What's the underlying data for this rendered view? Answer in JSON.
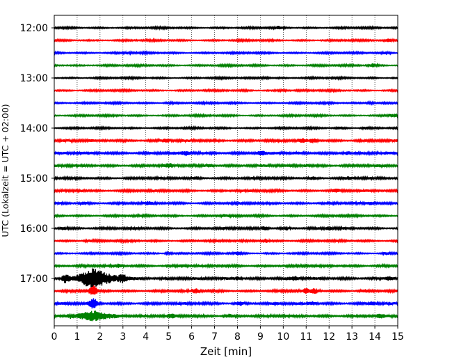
{
  "chart_data": {
    "type": "line",
    "title": "",
    "xlabel": "Zeit  [min]",
    "ylabel": "UTC (Lokalzeit = UTC + 02:00)",
    "xlim": [
      0,
      15
    ],
    "x_ticks": [
      "0",
      "1",
      "2",
      "3",
      "4",
      "5",
      "6",
      "7",
      "8",
      "9",
      "10",
      "11",
      "12",
      "13",
      "14",
      "15"
    ],
    "y_ticks": [
      {
        "label": "12:00",
        "trace": 0
      },
      {
        "label": "13:00",
        "trace": 4
      },
      {
        "label": "14:00",
        "trace": 8
      },
      {
        "label": "15:00",
        "trace": 12
      },
      {
        "label": "16:00",
        "trace": 16
      },
      {
        "label": "17:00",
        "trace": 20
      }
    ],
    "grid": "vertical-dotted",
    "trace_interval_minutes": 15,
    "trace_color_cycle": [
      "#000000",
      "#ff0000",
      "#0000ff",
      "#008000"
    ],
    "traces": [
      {
        "start": "12:00",
        "color": "#000000",
        "amplitude": 0.35,
        "events": [
          {
            "x": 9.8,
            "amp": 0.5
          }
        ]
      },
      {
        "start": "12:15",
        "color": "#ff0000",
        "amplitude": 0.35,
        "events": [
          {
            "x": 14.6,
            "amp": 0.5
          }
        ]
      },
      {
        "start": "12:30",
        "color": "#0000ff",
        "amplitude": 0.35,
        "events": [
          {
            "x": 3.2,
            "amp": 0.4
          },
          {
            "x": 14.5,
            "amp": 0.5
          }
        ]
      },
      {
        "start": "12:45",
        "color": "#008000",
        "amplitude": 0.35,
        "events": [
          {
            "x": 13.9,
            "amp": 0.6
          }
        ]
      },
      {
        "start": "13:00",
        "color": "#000000",
        "amplitude": 0.35,
        "events": [
          {
            "x": 9.2,
            "amp": 0.5
          }
        ]
      },
      {
        "start": "13:15",
        "color": "#ff0000",
        "amplitude": 0.35,
        "events": [
          {
            "x": 10.0,
            "amp": 0.4
          }
        ]
      },
      {
        "start": "13:30",
        "color": "#0000ff",
        "amplitude": 0.35,
        "events": [
          {
            "x": 5.0,
            "amp": 0.4
          },
          {
            "x": 13.8,
            "amp": 0.4
          }
        ]
      },
      {
        "start": "13:45",
        "color": "#008000",
        "amplitude": 0.35,
        "events": [
          {
            "x": 14.8,
            "amp": 0.6
          }
        ]
      },
      {
        "start": "14:00",
        "color": "#000000",
        "amplitude": 0.35,
        "events": [
          {
            "x": 12.5,
            "amp": 0.5
          },
          {
            "x": 13.6,
            "amp": 0.5
          }
        ]
      },
      {
        "start": "14:15",
        "color": "#ff0000",
        "amplitude": 0.5,
        "events": [
          {
            "x": 4.9,
            "amp": 0.8
          },
          {
            "x": 11.3,
            "amp": 0.8
          },
          {
            "x": 10.8,
            "amp": 0.6
          }
        ]
      },
      {
        "start": "14:30",
        "color": "#0000ff",
        "amplitude": 0.55,
        "events": [
          {
            "x": 5.8,
            "amp": 0.7
          },
          {
            "x": 9.0,
            "amp": 0.7
          },
          {
            "x": 12.8,
            "amp": 0.6
          }
        ]
      },
      {
        "start": "14:45",
        "color": "#008000",
        "amplitude": 0.5,
        "events": [
          {
            "x": 5.0,
            "amp": 0.6
          },
          {
            "x": 6.8,
            "amp": 0.6
          },
          {
            "x": 11.0,
            "amp": 0.5
          }
        ]
      },
      {
        "start": "15:00",
        "color": "#000000",
        "amplitude": 0.45,
        "events": [
          {
            "x": 6.2,
            "amp": 0.6
          },
          {
            "x": 11.3,
            "amp": 0.5
          },
          {
            "x": 12.9,
            "amp": 0.5
          }
        ]
      },
      {
        "start": "15:15",
        "color": "#ff0000",
        "amplitude": 0.45,
        "events": [
          {
            "x": 12.3,
            "amp": 0.6
          },
          {
            "x": 1.2,
            "amp": 0.4
          }
        ]
      },
      {
        "start": "15:30",
        "color": "#0000ff",
        "amplitude": 0.45,
        "events": [
          {
            "x": 1.3,
            "amp": 0.5
          },
          {
            "x": 4.1,
            "amp": 0.5
          },
          {
            "x": 13.8,
            "amp": 0.5
          }
        ]
      },
      {
        "start": "15:45",
        "color": "#008000",
        "amplitude": 0.4,
        "events": [
          {
            "x": 7.4,
            "amp": 0.4
          }
        ]
      },
      {
        "start": "16:00",
        "color": "#000000",
        "amplitude": 0.45,
        "events": [
          {
            "x": 0.4,
            "amp": 0.6
          },
          {
            "x": 9.2,
            "amp": 0.7
          },
          {
            "x": 10.1,
            "amp": 0.6
          },
          {
            "x": 12.0,
            "amp": 0.5
          }
        ]
      },
      {
        "start": "16:15",
        "color": "#ff0000",
        "amplitude": 0.4,
        "events": [
          {
            "x": 9.2,
            "amp": 0.8
          },
          {
            "x": 1.5,
            "amp": 0.4
          }
        ]
      },
      {
        "start": "16:30",
        "color": "#0000ff",
        "amplitude": 0.35,
        "events": [
          {
            "x": 5.0,
            "amp": 0.4
          },
          {
            "x": 8.0,
            "amp": 0.4
          },
          {
            "x": 14.5,
            "amp": 0.4
          }
        ]
      },
      {
        "start": "16:45",
        "color": "#008000",
        "amplitude": 0.45,
        "events": [
          {
            "x": 2.8,
            "amp": 0.6
          },
          {
            "x": 5.6,
            "amp": 0.5
          }
        ]
      },
      {
        "start": "17:00",
        "color": "#000000",
        "amplitude": 0.55,
        "events": [
          {
            "x": 0.5,
            "amp": 1.8
          },
          {
            "x": 1.8,
            "amp": 4.5
          },
          {
            "x": 3.0,
            "amp": 1.2
          },
          {
            "x": 8.0,
            "amp": 0.6
          },
          {
            "x": 10.5,
            "amp": 0.6
          },
          {
            "x": 14.6,
            "amp": 0.7
          }
        ]
      },
      {
        "start": "17:15",
        "color": "#ff0000",
        "amplitude": 0.45,
        "events": [
          {
            "x": 1.7,
            "amp": 2.0
          },
          {
            "x": 6.2,
            "amp": 0.7
          },
          {
            "x": 11.0,
            "amp": 0.9
          },
          {
            "x": 11.4,
            "amp": 0.9
          },
          {
            "x": 13.5,
            "amp": 0.5
          }
        ]
      },
      {
        "start": "17:30",
        "color": "#0000ff",
        "amplitude": 0.5,
        "events": [
          {
            "x": 1.7,
            "amp": 2.0
          },
          {
            "x": 8.1,
            "amp": 0.7
          },
          {
            "x": 11.3,
            "amp": 0.7
          },
          {
            "x": 13.9,
            "amp": 0.7
          }
        ]
      },
      {
        "start": "17:45",
        "color": "#008000",
        "amplitude": 0.5,
        "events": [
          {
            "x": 1.8,
            "amp": 2.2
          },
          {
            "x": 0.7,
            "amp": 0.7
          },
          {
            "x": 5.1,
            "amp": 0.6
          },
          {
            "x": 7.6,
            "amp": 0.7
          },
          {
            "x": 14.2,
            "amp": 0.6
          }
        ]
      }
    ]
  }
}
